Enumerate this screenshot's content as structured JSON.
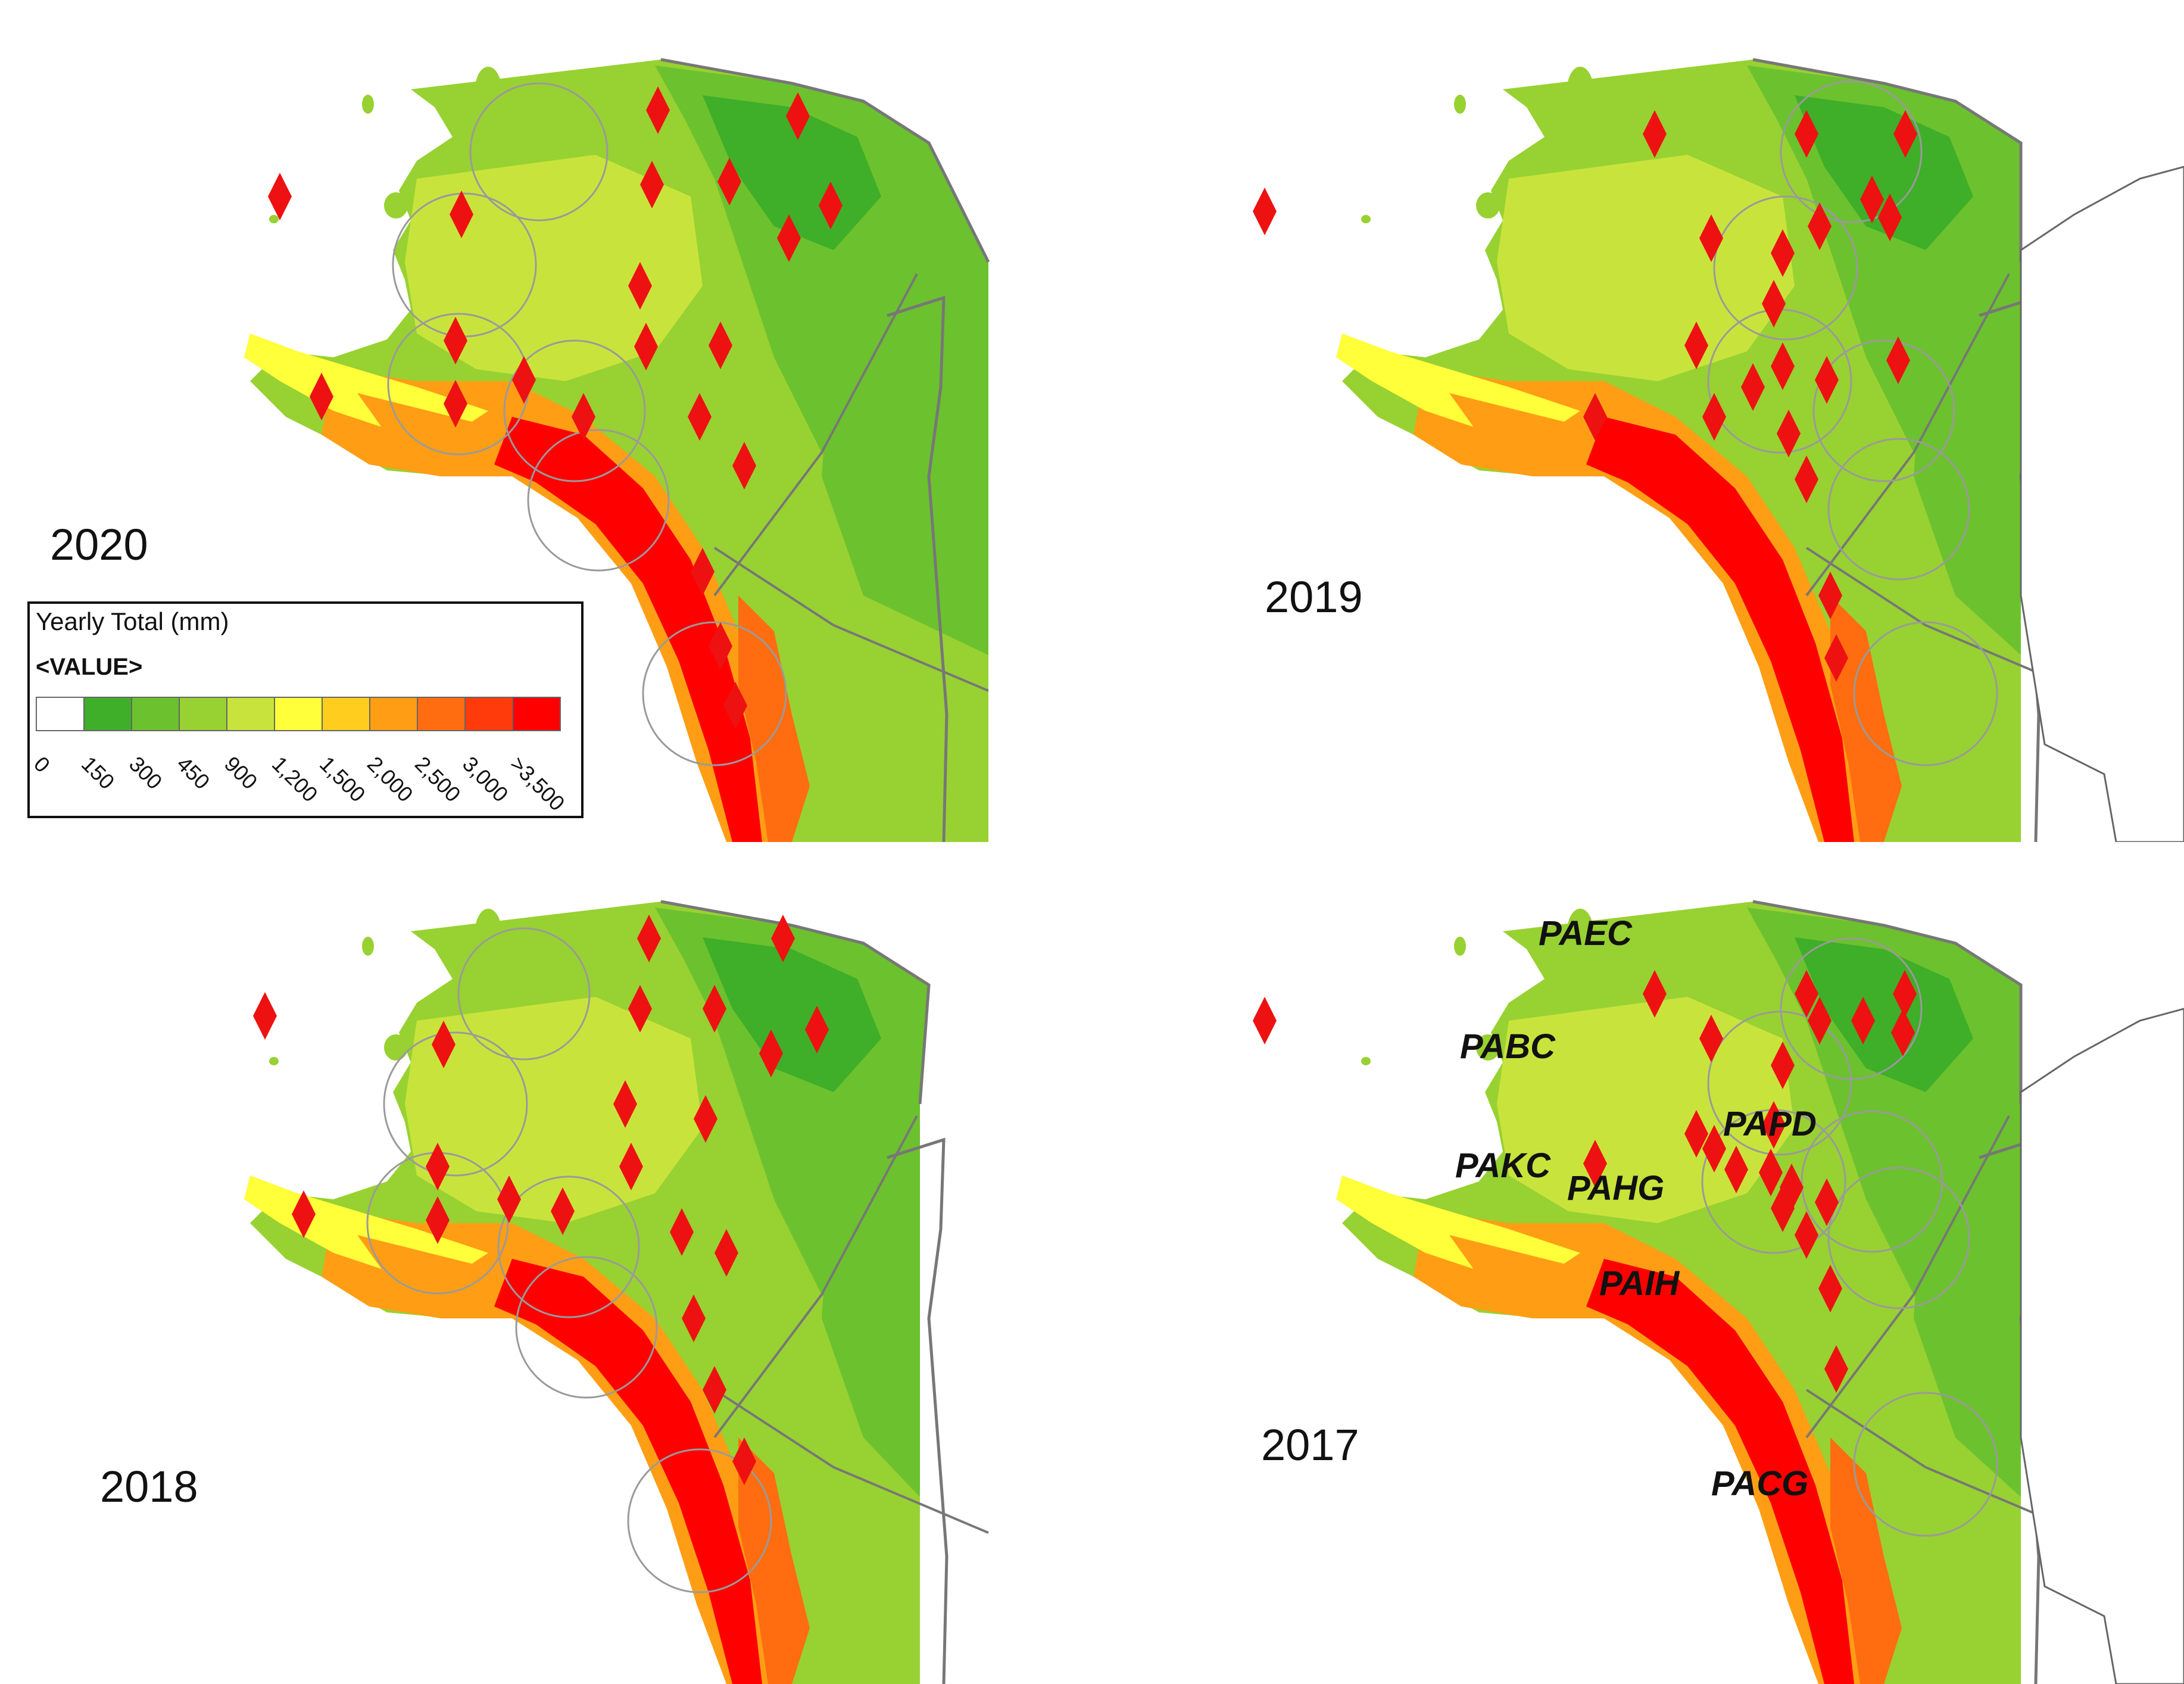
{
  "colors": {
    "precip_scale": [
      "#ffffff",
      "#3fae29",
      "#6cc12e",
      "#98d132",
      "#c8e43c",
      "#ffff3a",
      "#ffcd1e",
      "#ff9e14",
      "#ff6d10",
      "#ff3b0c",
      "#ff0000"
    ],
    "diamond": "#ee1111",
    "boundary": "#777777",
    "range_circle": "#9a9a9a"
  },
  "legend": {
    "title": "Yearly Total (mm)",
    "subtitle": "<VALUE>",
    "ticks": [
      "0",
      "150",
      "300",
      "450",
      "900",
      "1,200",
      "1,500",
      "2,000",
      "2,500",
      "3,000",
      ">3,500"
    ]
  },
  "panels": [
    {
      "id": "2020",
      "year": "2020"
    },
    {
      "id": "2019",
      "year": "2019"
    },
    {
      "id": "2018",
      "year": "2018"
    },
    {
      "id": "2017",
      "year": "2017"
    }
  ],
  "stations_2017": [
    "PAEC",
    "PABC",
    "PAPD",
    "PAKC",
    "PAHG",
    "PAIH",
    "PACG"
  ],
  "icons": {
    "radar_site": "diamond-icon"
  }
}
